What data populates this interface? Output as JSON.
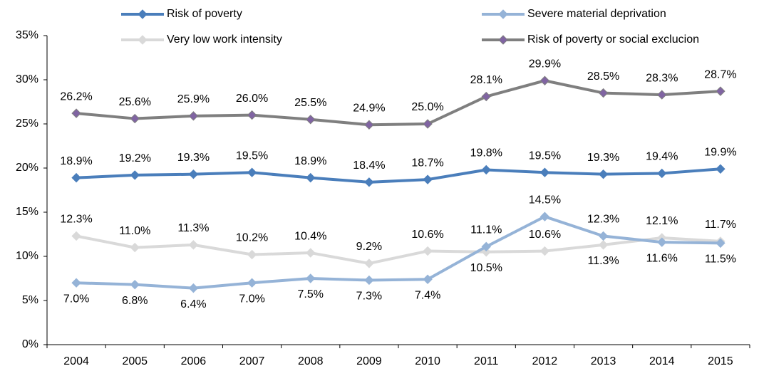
{
  "chart_data": {
    "type": "line",
    "categories": [
      "2004",
      "2005",
      "2006",
      "2007",
      "2008",
      "2009",
      "2010",
      "2011",
      "2012",
      "2013",
      "2014",
      "2015"
    ],
    "series": [
      {
        "name": "Risk of poverty",
        "color": "#4a7ebb",
        "marker_color": "#4a7ebb",
        "values": [
          18.9,
          19.2,
          19.3,
          19.5,
          18.9,
          18.4,
          18.7,
          19.8,
          19.5,
          19.3,
          19.4,
          19.9
        ],
        "value_labels": [
          "18.9%",
          "19.2%",
          "19.3%",
          "19.5%",
          "18.9%",
          "18.4%",
          "18.7%",
          "19.8%",
          "19.5%",
          "19.3%",
          "19.4%",
          "19.9%"
        ]
      },
      {
        "name": "Severe material deprivation",
        "color": "#95b3d7",
        "marker_color": "#95b3d7",
        "values": [
          7.0,
          6.8,
          6.4,
          7.0,
          7.5,
          7.3,
          7.4,
          11.1,
          14.5,
          12.3,
          11.6,
          11.5
        ],
        "value_labels": [
          "7.0%",
          "6.8%",
          "6.4%",
          "7.0%",
          "7.5%",
          "7.3%",
          "7.4%",
          "11.1%",
          "14.5%",
          "12.3%",
          "11.6%",
          "11.5%"
        ]
      },
      {
        "name": "Very low work intensity",
        "color": "#d9d9d9",
        "marker_color": "#d9d9d9",
        "values": [
          12.3,
          11.0,
          11.3,
          10.2,
          10.4,
          9.2,
          10.6,
          10.5,
          10.6,
          11.3,
          12.1,
          11.7
        ],
        "value_labels": [
          "12.3%",
          "11.0%",
          "11.3%",
          "10.2%",
          "10.4%",
          "9.2%",
          "10.6%",
          "10.5%",
          "10.6%",
          "11.3%",
          "12.1%",
          "11.7%"
        ]
      },
      {
        "name": "Risk of poverty or social exclucion",
        "color": "#7f7f7f",
        "marker_color": "#8064a2",
        "values": [
          26.2,
          25.6,
          25.9,
          26.0,
          25.5,
          24.9,
          25.0,
          28.1,
          29.9,
          28.5,
          28.3,
          28.7
        ],
        "value_labels": [
          "26.2%",
          "25.6%",
          "25.9%",
          "26.0%",
          "25.5%",
          "24.9%",
          "25.0%",
          "28.1%",
          "29.9%",
          "28.5%",
          "28.3%",
          "28.7%"
        ]
      }
    ],
    "ylim": [
      0,
      35
    ],
    "yticks": [
      {
        "value": 0,
        "label": "0%"
      },
      {
        "value": 5,
        "label": "5%"
      },
      {
        "value": 10,
        "label": "10%"
      },
      {
        "value": 15,
        "label": "15%"
      },
      {
        "value": 20,
        "label": "20%"
      },
      {
        "value": 25,
        "label": "25%"
      },
      {
        "value": 30,
        "label": "30%"
      },
      {
        "value": 35,
        "label": "35%"
      }
    ],
    "grid": false
  }
}
